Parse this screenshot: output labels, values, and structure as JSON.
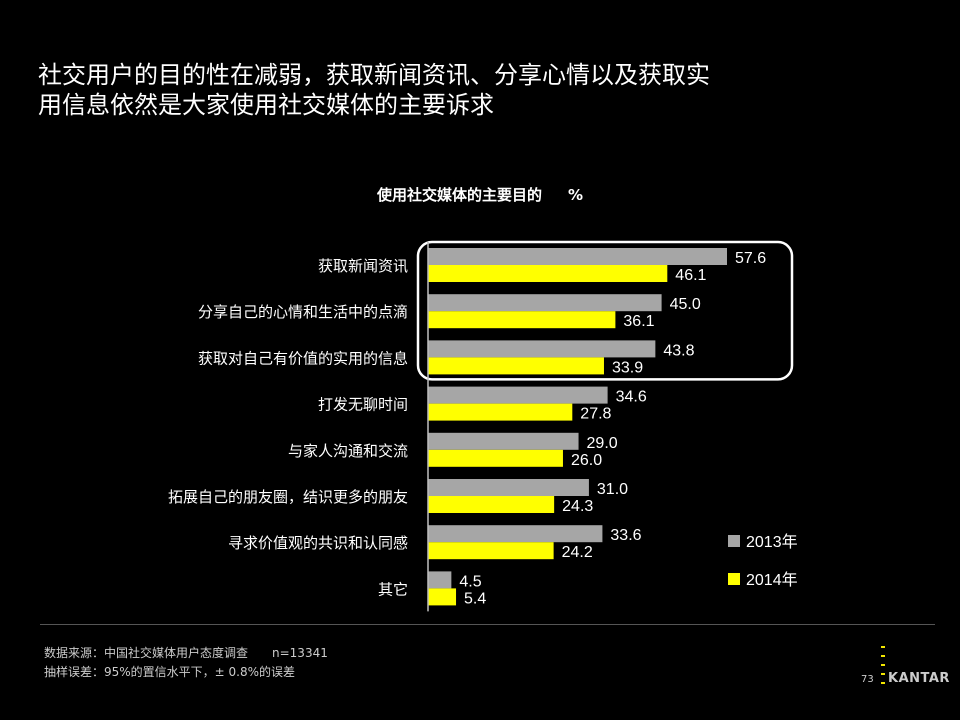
{
  "slide": {
    "title_lines": [
      "社交用户的目的性在减弱，获取新闻资讯、分享心情以及获取实",
      "用信息依然是大家使用社交媒体的主要诉求"
    ],
    "source": "数据来源：中国社交媒体用户态度调查",
    "sample": "n=13341",
    "error": "抽样误差：95%的置信水平下，± 0.8%的误差",
    "page_number": "73",
    "logo": "KANTAR"
  },
  "chart_data": {
    "type": "bar",
    "orientation": "horizontal",
    "title": "使用社交媒体的主要目的",
    "unit": "%",
    "categories": [
      "获取新闻资讯",
      "分享自己的心情和生活中的点滴",
      "获取对自己有价值的实用的信息",
      "打发无聊时间",
      "与家人沟通和交流",
      "拓展自己的朋友圈，结识更多的朋友",
      "寻求价值观的共识和认同感",
      "其它"
    ],
    "series": [
      {
        "name": "2013年",
        "color": "#a6a6a6",
        "values": [
          57.6,
          45.0,
          43.8,
          34.6,
          29.0,
          31.0,
          33.6,
          4.5
        ]
      },
      {
        "name": "2014年",
        "color": "#ffff00",
        "values": [
          46.1,
          36.1,
          33.9,
          27.8,
          26.0,
          24.3,
          24.2,
          5.4
        ]
      }
    ],
    "value_labels": [
      [
        "57.6",
        "45.0",
        "43.8",
        "34.6",
        "29.0",
        "31.0",
        "33.6",
        "4.5"
      ],
      [
        "46.1",
        "36.1",
        "33.9",
        "27.8",
        "26.0",
        "24.3",
        "24.2",
        "5.4"
      ]
    ],
    "xlim": [
      0,
      60
    ],
    "grid": false,
    "legend_position": "bottom-right",
    "highlight": {
      "categories": [
        0,
        1,
        2
      ],
      "color": "#ffffff"
    }
  }
}
